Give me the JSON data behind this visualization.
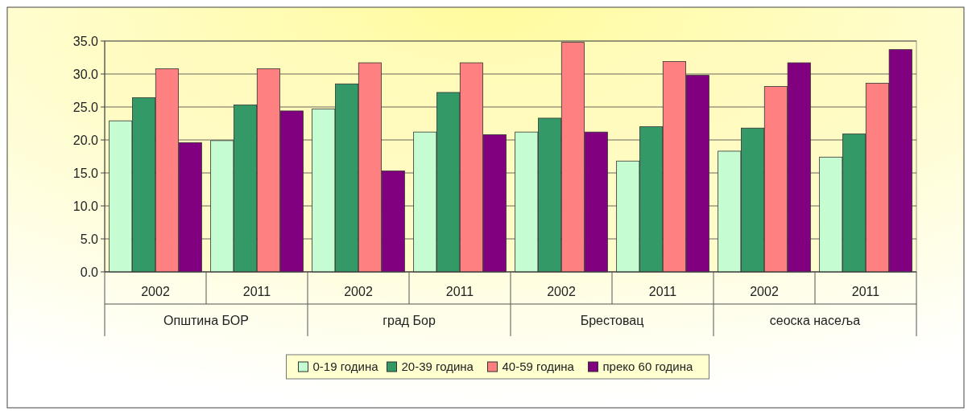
{
  "chart_data": {
    "type": "bar",
    "categories": [
      "2002",
      "2011",
      "2002",
      "2011",
      "2002",
      "2011",
      "2002",
      "2011"
    ],
    "annotations": [
      "Општина БОР",
      "град Бор",
      "Брестовац",
      "сеоска насеља"
    ],
    "series": [
      {
        "name": "0-19 година",
        "color": "#c6fcd2",
        "values": [
          22.9,
          19.9,
          24.7,
          21.2,
          21.2,
          16.8,
          18.3,
          17.4
        ]
      },
      {
        "name": "20-39 година",
        "color": "#339966",
        "values": [
          26.4,
          25.3,
          28.5,
          27.2,
          23.3,
          22.0,
          21.8,
          20.9
        ]
      },
      {
        "name": "40-59 година",
        "color": "#ff8080",
        "values": [
          30.8,
          30.8,
          31.7,
          31.7,
          34.8,
          31.9,
          28.1,
          28.6
        ]
      },
      {
        "name": "преко 60 година",
        "color": "#800080",
        "values": [
          19.6,
          24.4,
          15.3,
          20.8,
          21.2,
          29.8,
          31.7,
          33.7
        ]
      }
    ],
    "ylim": [
      0,
      35
    ],
    "yticks": [
      {
        "value": 0,
        "label": "0.0"
      },
      {
        "value": 5,
        "label": "5.0"
      },
      {
        "value": 10,
        "label": "10.0"
      },
      {
        "value": 15,
        "label": "15.0"
      },
      {
        "value": 20,
        "label": "20.0"
      },
      {
        "value": 25,
        "label": "25.0"
      },
      {
        "value": 30,
        "label": "30.0"
      },
      {
        "value": 35,
        "label": "35.0"
      }
    ],
    "grid": "y",
    "legend": "bottom"
  }
}
